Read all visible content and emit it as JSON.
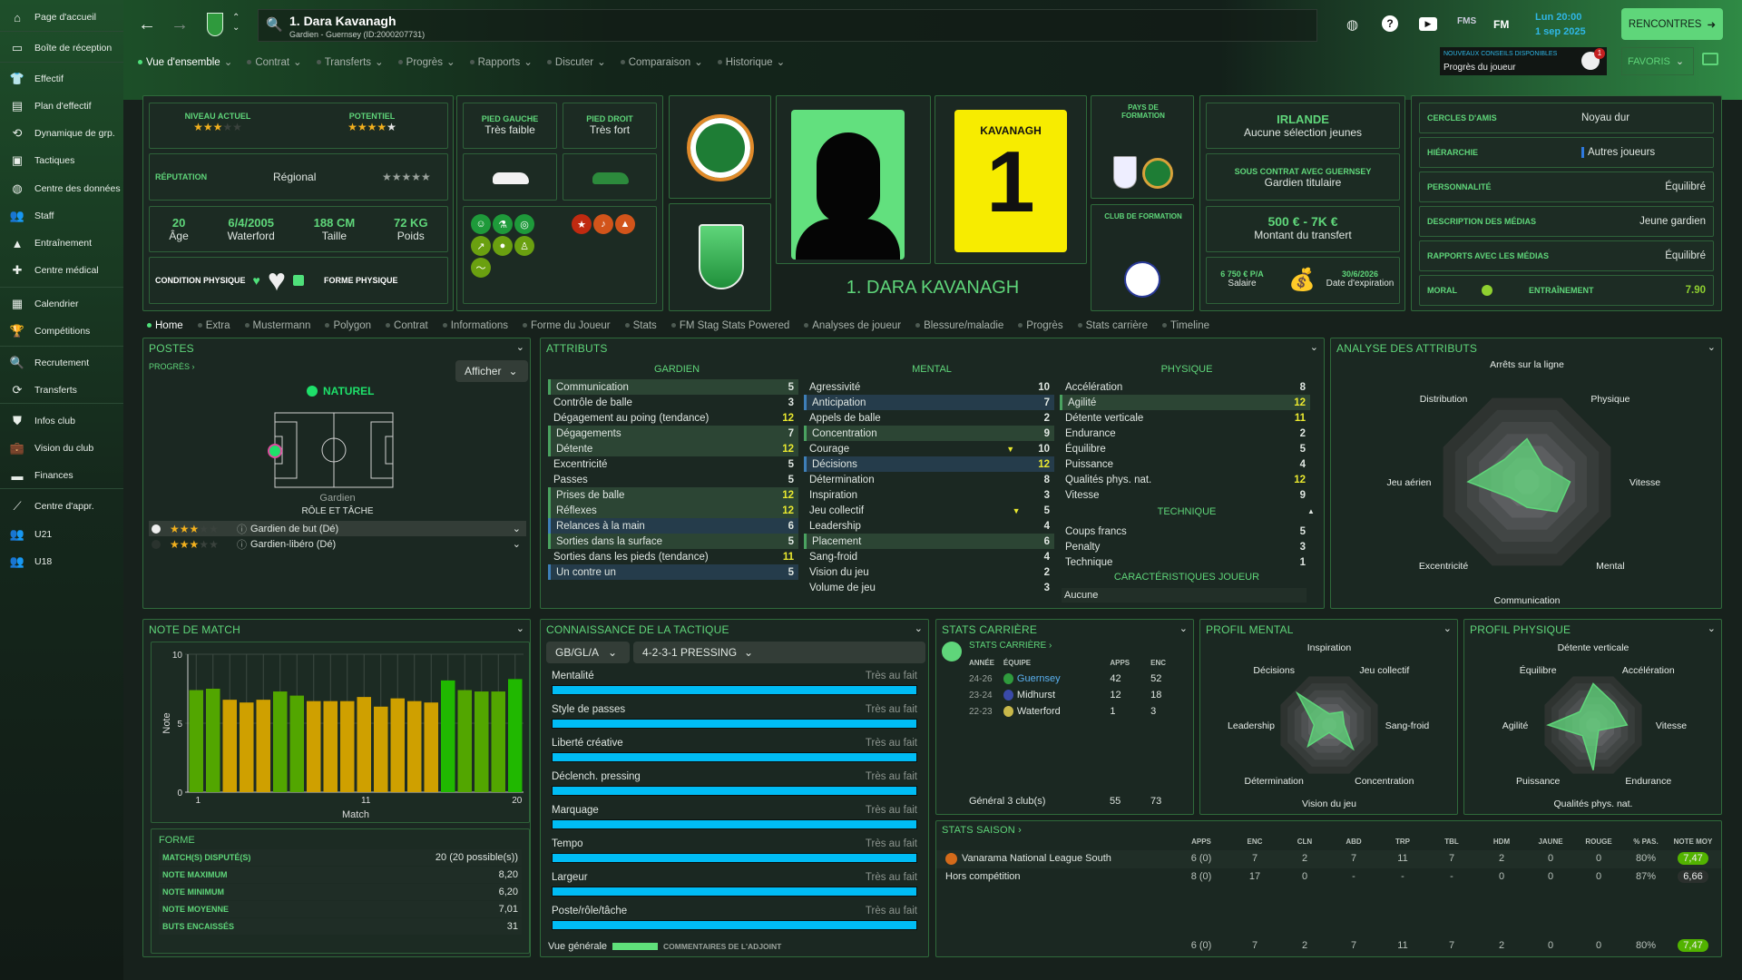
{
  "colors": {
    "accent": "#5fd67a",
    "panel_border": "#2f6a3b",
    "bar_good": "#52a600",
    "bar_avg": "#cfa000",
    "bar_best": "#20b800",
    "tactic_fill": "#00bcf5"
  },
  "sidebar": {
    "items": [
      {
        "label": "Page d'accueil",
        "icon": "home-icon",
        "glyph": "⌂"
      },
      {
        "label": "Boîte de réception",
        "icon": "inbox-icon",
        "glyph": "▭"
      },
      {
        "label": "Effectif",
        "icon": "shirt-icon",
        "glyph": "👕"
      },
      {
        "label": "Plan d'effectif",
        "icon": "clipboard-icon",
        "glyph": "▤"
      },
      {
        "label": "Dynamique de grp.",
        "icon": "group-dynamics-icon",
        "glyph": "⟲"
      },
      {
        "label": "Tactiques",
        "icon": "tactics-icon",
        "glyph": "▣"
      },
      {
        "label": "Centre des données",
        "icon": "data-centre-icon",
        "glyph": "◍"
      },
      {
        "label": "Staff",
        "icon": "staff-icon",
        "glyph": "👥"
      },
      {
        "label": "Entraînement",
        "icon": "training-icon",
        "glyph": "▲"
      },
      {
        "label": "Centre médical",
        "icon": "medical-icon",
        "glyph": "✚"
      },
      {
        "label": "Calendrier",
        "icon": "calendar-icon",
        "glyph": "▦"
      },
      {
        "label": "Compétitions",
        "icon": "trophy-icon",
        "glyph": "🏆"
      },
      {
        "label": "Recrutement",
        "icon": "search-icon",
        "glyph": "🔍"
      },
      {
        "label": "Transferts",
        "icon": "transfer-icon",
        "glyph": "⟳"
      },
      {
        "label": "Infos club",
        "icon": "shield-icon",
        "glyph": "⛊"
      },
      {
        "label": "Vision du club",
        "icon": "briefcase-icon",
        "glyph": "💼"
      },
      {
        "label": "Finances",
        "icon": "money-icon",
        "glyph": "▬"
      },
      {
        "label": "Centre d'appr.",
        "icon": "academy-icon",
        "glyph": "⟋"
      },
      {
        "label": "U21",
        "icon": "u21-icon",
        "glyph": "👥"
      },
      {
        "label": "U18",
        "icon": "u18-icon",
        "glyph": "👥"
      }
    ]
  },
  "header": {
    "title": "1. Dara Kavanagh",
    "subtitle": "Gardien - Guernsey (ID:2000207731)",
    "time": "Lun 20:00",
    "date": "1 sep 2025",
    "matches_button": "RENCONTRES",
    "favorites": "FAVORIS",
    "fm_label": "FM",
    "fms_label": "FMS",
    "advice": {
      "title": "NOUVEAUX CONSEILS DISPONIBLES",
      "text": "Progrès du joueur",
      "count": "1"
    },
    "nav": [
      "Vue d'ensemble",
      "Contrat",
      "Transferts",
      "Progrès",
      "Rapports",
      "Discuter",
      "Comparaison",
      "Historique"
    ]
  },
  "profile": {
    "current_ability_label": "NIVEAU ACTUEL",
    "current_ability_stars": 3,
    "potential_label": "POTENTIEL",
    "potential_stars": 4.5,
    "reputation_label": "RÉPUTATION",
    "reputation": "Régional",
    "age": "20",
    "age_label": "Âge",
    "birth": "6/4/2005",
    "birthplace": "Waterford",
    "height": "188 CM",
    "height_label": "Taille",
    "weight": "72 KG",
    "weight_label": "Poids",
    "condition_label": "CONDITION PHYSIQUE",
    "form_label": "FORME PHYSIQUE",
    "left_foot_label": "PIED GAUCHE",
    "left_foot": "Très faible",
    "right_foot_label": "PIED DROIT",
    "right_foot": "Très fort",
    "name_banner": "1. DARA KAVANAGH",
    "shirt_name": "KAVANAGH",
    "shirt_number": "1",
    "training_nation_label": "PAYS DE FORMATION",
    "training_club_label": "CLUB DE FORMATION",
    "nation": "IRLANDE",
    "nation_sub": "Aucune sélection jeunes",
    "contract_label": "SOUS CONTRAT AVEC GUERNSEY",
    "contract_role": "Gardien titulaire",
    "transfer_value": "500 € - 7K €",
    "transfer_label": "Montant du transfert",
    "wage": "6 750 € P/A",
    "wage_label": "Salaire",
    "expiry": "30/6/2026",
    "expiry_label": "Date d'expiration",
    "info": [
      {
        "k": "CERCLES D'AMIS",
        "v": "Noyau dur"
      },
      {
        "k": "HIÉRARCHIE",
        "v": "Autres joueurs"
      },
      {
        "k": "PERSONNALITÉ",
        "v": "Équilibré"
      },
      {
        "k": "DESCRIPTION DES MÉDIAS",
        "v": "Jeune gardien"
      },
      {
        "k": "RAPPORTS AVEC LES MÉDIAS",
        "v": "Équilibré"
      }
    ],
    "morale_label": "MORAL",
    "training_label": "ENTRAÎNEMENT",
    "training_value": "7.90"
  },
  "tabs": [
    "Home",
    "Extra",
    "Mustermann",
    "Polygon",
    "Contrat",
    "Informations",
    "Forme du Joueur",
    "Stats",
    "FM Stag Stats Powered",
    "Analyses de joueur",
    "Blessure/maladie",
    "Progrès",
    "Stats carrière",
    "Timeline"
  ],
  "positions": {
    "title": "POSTES",
    "progress_link": "PROGRÈS ›",
    "show_button": "Afficher",
    "naturel": "NATUREL",
    "position": "Gardien",
    "role_label": "RÔLE ET TÂCHE",
    "roles": [
      {
        "name": "Gardien de but (Dé)",
        "stars": 3
      },
      {
        "name": "Gardien-libéro (Dé)",
        "stars": 2.5
      }
    ]
  },
  "attributes": {
    "title": "ATTRIBUTS",
    "goalkeeping": {
      "title": "GARDIEN",
      "rows": [
        {
          "n": "Communication",
          "v": 5,
          "h": "g"
        },
        {
          "n": "Contrôle de balle",
          "v": 3,
          "h": ""
        },
        {
          "n": "Dégagement au poing (tendance)",
          "v": 12,
          "h": ""
        },
        {
          "n": "Dégagements",
          "v": 7,
          "h": "g"
        },
        {
          "n": "Détente",
          "v": 12,
          "h": "g"
        },
        {
          "n": "Excentricité",
          "v": 5,
          "h": ""
        },
        {
          "n": "Passes",
          "v": 5,
          "h": ""
        },
        {
          "n": "Prises de balle",
          "v": 12,
          "h": "g"
        },
        {
          "n": "Réflexes",
          "v": 12,
          "h": "g"
        },
        {
          "n": "Relances à la main",
          "v": 6,
          "h": "b"
        },
        {
          "n": "Sorties dans la surface",
          "v": 5,
          "h": "g"
        },
        {
          "n": "Sorties dans les pieds (tendance)",
          "v": 11,
          "h": ""
        },
        {
          "n": "Un contre un",
          "v": 5,
          "h": "b"
        }
      ]
    },
    "mental": {
      "title": "MENTAL",
      "rows": [
        {
          "n": "Agressivité",
          "v": 10,
          "h": ""
        },
        {
          "n": "Anticipation",
          "v": 7,
          "h": "b"
        },
        {
          "n": "Appels de balle",
          "v": 2,
          "h": ""
        },
        {
          "n": "Concentration",
          "v": 9,
          "h": "g"
        },
        {
          "n": "Courage",
          "v": 10,
          "h": "",
          "arrow": true
        },
        {
          "n": "Décisions",
          "v": 12,
          "h": "b"
        },
        {
          "n": "Détermination",
          "v": 8,
          "h": ""
        },
        {
          "n": "Inspiration",
          "v": 3,
          "h": ""
        },
        {
          "n": "Jeu collectif",
          "v": 5,
          "h": "",
          "arrow": true
        },
        {
          "n": "Leadership",
          "v": 4,
          "h": ""
        },
        {
          "n": "Placement",
          "v": 6,
          "h": "g"
        },
        {
          "n": "Sang-froid",
          "v": 4,
          "h": ""
        },
        {
          "n": "Vision du jeu",
          "v": 2,
          "h": ""
        },
        {
          "n": "Volume de jeu",
          "v": 3,
          "h": ""
        }
      ]
    },
    "physical": {
      "title": "PHYSIQUE",
      "rows": [
        {
          "n": "Accélération",
          "v": 8,
          "h": ""
        },
        {
          "n": "Agilité",
          "v": 12,
          "h": "g"
        },
        {
          "n": "Détente verticale",
          "v": 11,
          "h": ""
        },
        {
          "n": "Endurance",
          "v": 2,
          "h": ""
        },
        {
          "n": "Équilibre",
          "v": 5,
          "h": ""
        },
        {
          "n": "Puissance",
          "v": 4,
          "h": ""
        },
        {
          "n": "Qualités phys. nat.",
          "v": 12,
          "h": ""
        },
        {
          "n": "Vitesse",
          "v": 9,
          "h": ""
        }
      ]
    },
    "technical": {
      "title": "TECHNIQUE",
      "rows": [
        {
          "n": "Coups francs",
          "v": 5,
          "h": ""
        },
        {
          "n": "Penalty",
          "v": 3,
          "h": ""
        },
        {
          "n": "Technique",
          "v": 1,
          "h": ""
        }
      ]
    },
    "traits_title": "CARACTÉRISTIQUES JOUEUR",
    "traits": "Aucune"
  },
  "analysis": {
    "title": "ANALYSE DES ATTRIBUTS",
    "labels": [
      "Arrêts sur la ligne",
      "Physique",
      "Vitesse",
      "Mental",
      "Communication",
      "Excentricité",
      "Jeu aérien",
      "Distribution"
    ],
    "values": [
      9.5,
      5,
      9.5,
      9.3,
      5.6,
      5,
      13,
      7
    ],
    "max": 20
  },
  "chart_data": {
    "type": "bar",
    "title": "NOTE DE MATCH",
    "xlabel": "Match",
    "ylabel": "Note",
    "ylim": [
      0,
      10
    ],
    "yticks": [
      0,
      5,
      10
    ],
    "xticks": [
      1,
      11,
      20
    ],
    "categories": [
      1,
      2,
      3,
      4,
      5,
      6,
      7,
      8,
      9,
      10,
      11,
      12,
      13,
      14,
      15,
      16,
      17,
      18,
      19,
      20
    ],
    "values": [
      7.4,
      7.5,
      6.7,
      6.5,
      6.7,
      7.3,
      7.0,
      6.6,
      6.6,
      6.6,
      6.9,
      6.2,
      6.8,
      6.6,
      6.5,
      8.1,
      7.4,
      7.3,
      7.3,
      8.2
    ],
    "grid": true
  },
  "form": {
    "title": "FORME",
    "rows": [
      {
        "k": "MATCH(S) DISPUTÉ(S)",
        "v": "20 (20 possible(s))"
      },
      {
        "k": "NOTE MAXIMUM",
        "v": "8,20"
      },
      {
        "k": "NOTE MINIMUM",
        "v": "6,20"
      },
      {
        "k": "NOTE MOYENNE",
        "v": "7,01"
      },
      {
        "k": "BUTS ENCAISSÉS",
        "v": "31"
      }
    ]
  },
  "tactics": {
    "title": "CONNAISSANCE DE LA TACTIQUE",
    "role_select": "GB/GL/A",
    "tactic_select": "4-2-3-1 PRESSING",
    "rows": [
      {
        "n": "Mentalité",
        "s": "Très au fait",
        "p": 100
      },
      {
        "n": "Style de passes",
        "s": "Très au fait",
        "p": 100
      },
      {
        "n": "Liberté créative",
        "s": "Très au fait",
        "p": 100
      },
      {
        "n": "Déclench. pressing",
        "s": "Très au fait",
        "p": 100
      },
      {
        "n": "Marquage",
        "s": "Très au fait",
        "p": 100
      },
      {
        "n": "Tempo",
        "s": "Très au fait",
        "p": 100
      },
      {
        "n": "Largeur",
        "s": "Très au fait",
        "p": 100
      },
      {
        "n": "Poste/rôle/tâche",
        "s": "Très au fait",
        "p": 100
      }
    ],
    "overview_label": "Vue générale",
    "overview_pct": 100,
    "assistant": "COMMENTAIRES DE L'ADJOINT"
  },
  "career": {
    "title": "STATS CARRIÈRE",
    "link": "STATS CARRIÈRE ›",
    "headers": [
      "ANNÉE",
      "ÉQUIPE",
      "APPS",
      "ENC"
    ],
    "rows": [
      {
        "y": "24-26",
        "t": "Guernsey",
        "a": "42",
        "e": "52"
      },
      {
        "y": "23-24",
        "t": "Midhurst",
        "a": "12",
        "e": "18"
      },
      {
        "y": "22-23",
        "t": "Waterford",
        "a": "1",
        "e": "3"
      }
    ],
    "total": {
      "l": "Général 3 club(s)",
      "a": "55",
      "e": "73"
    }
  },
  "mental_profile": {
    "title": "PROFIL MENTAL",
    "labels": [
      "Inspiration",
      "Jeu collectif",
      "Sang-froid",
      "Concentration",
      "Vision du jeu",
      "Détermination",
      "Leadership",
      "Décisions"
    ],
    "values": [
      3,
      5,
      4,
      9,
      2,
      8,
      4,
      12
    ],
    "max": 14
  },
  "physical_profile": {
    "title": "PROFIL PHYSIQUE",
    "labels": [
      "Détente verticale",
      "Accélération",
      "Vitesse",
      "Endurance",
      "Qualités phys. nat.",
      "Puissance",
      "Agilité",
      "Équilibre"
    ],
    "values": [
      11,
      8,
      9,
      2,
      12,
      4,
      12,
      5
    ],
    "max": 14
  },
  "season": {
    "title": "STATS SAISON ›",
    "headers": [
      "APPS",
      "ENC",
      "CLN",
      "ABD",
      "TRP",
      "TBL",
      "HDM",
      "JAUNE",
      "ROUGE",
      "% PAS.",
      "NOTE MOY"
    ],
    "rows": [
      {
        "name": "Vanarama National League South",
        "vals": [
          "6 (0)",
          "7",
          "2",
          "7",
          "11",
          "7",
          "2",
          "0",
          "0",
          "80%",
          "7,47"
        ],
        "good": true
      },
      {
        "name": "Hors compétition",
        "vals": [
          "8 (0)",
          "17",
          "0",
          "-",
          "-",
          "-",
          "0",
          "0",
          "0",
          "87%",
          "6,66"
        ],
        "good": false
      }
    ],
    "total": [
      "6 (0)",
      "7",
      "2",
      "7",
      "11",
      "7",
      "2",
      "0",
      "0",
      "80%",
      "7,47"
    ]
  }
}
